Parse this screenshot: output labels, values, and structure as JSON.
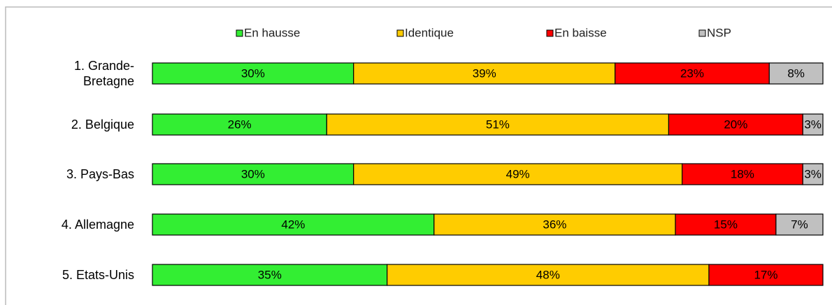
{
  "chart_data": {
    "type": "stacked-bar-horizontal",
    "categories": [
      "1. Grande-Bretagne",
      "2. Belgique",
      "3. Pays-Bas",
      "4. Allemagne",
      "5. Etats-Unis"
    ],
    "series": [
      {
        "name": "En hausse",
        "color": "#33ee33",
        "values": [
          30,
          26,
          30,
          42,
          35
        ],
        "value_labels": [
          "30%",
          "26%",
          "30%",
          "42%",
          "35%"
        ]
      },
      {
        "name": "Identique",
        "color": "#ffcc00",
        "values": [
          39,
          51,
          49,
          36,
          48
        ],
        "value_labels": [
          "39%",
          "51%",
          "49%",
          "36%",
          "48%"
        ]
      },
      {
        "name": "En baisse",
        "color": "#ff0000",
        "values": [
          23,
          20,
          18,
          15,
          17
        ],
        "value_labels": [
          "23%",
          "20%",
          "18%",
          "15%",
          "17%"
        ]
      },
      {
        "name": "NSP",
        "color": "#c0c0c0",
        "values": [
          8,
          3,
          3,
          7,
          null
        ],
        "value_labels": [
          "8%",
          "3%",
          "3%",
          "7%",
          null
        ]
      }
    ],
    "xlim": [
      0,
      100
    ],
    "legend": "top"
  }
}
